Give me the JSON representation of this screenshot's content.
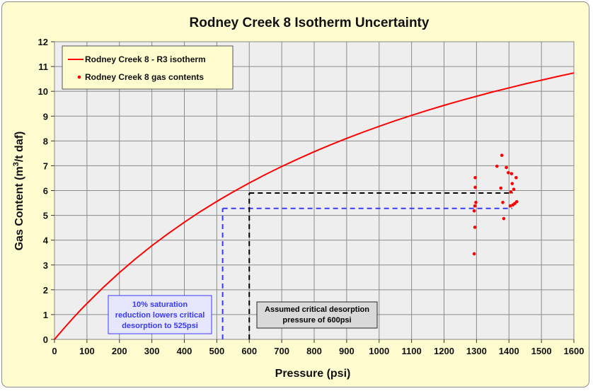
{
  "chart_data": {
    "type": "scatter",
    "title": "Rodney Creek 8 Isotherm Uncertainty",
    "xlabel": "Pressure (psi)",
    "ylabel": "Gas Content (m",
    "ylabel_sup": "3",
    "ylabel_end": "/t daf)",
    "xlim": [
      0,
      1600
    ],
    "ylim": [
      0,
      12
    ],
    "xticks": [
      "0",
      "100",
      "200",
      "300",
      "400",
      "500",
      "600",
      "700",
      "800",
      "900",
      "1000",
      "1100",
      "1200",
      "1300",
      "1400",
      "1500",
      "1600"
    ],
    "yticks": [
      "0",
      "1",
      "2",
      "3",
      "4",
      "5",
      "6",
      "7",
      "8",
      "9",
      "10",
      "11",
      "12"
    ],
    "grid": true,
    "legend_position": "top-left",
    "series": [
      {
        "name": "Rodney Creek 8 - R3 isotherm",
        "kind": "line",
        "color": "#ff0000",
        "x": [
          0,
          25,
          50,
          75,
          100,
          150,
          200,
          250,
          300,
          350,
          400,
          450,
          500,
          525,
          550,
          600,
          650,
          700,
          750,
          800,
          850,
          900,
          950,
          1000,
          1050,
          1100,
          1150,
          1200,
          1250,
          1300,
          1350,
          1400,
          1450,
          1500,
          1550,
          1600
        ],
        "y": [
          0,
          0.385,
          0.753,
          1.108,
          1.448,
          2.092,
          2.693,
          3.252,
          3.776,
          4.265,
          4.724,
          5.155,
          5.56,
          5.755,
          5.943,
          6.304,
          6.646,
          6.969,
          7.275,
          7.565,
          7.841,
          8.103,
          8.352,
          8.589,
          8.815,
          9.031,
          9.237,
          9.434,
          9.622,
          9.802,
          9.975,
          10.14,
          10.3,
          10.45,
          10.6,
          10.74
        ]
      },
      {
        "name": "Rodney Creek 8 gas contents",
        "kind": "scatter",
        "color": "#ff0000",
        "points": [
          [
            1293,
            3.45
          ],
          [
            1295,
            4.52
          ],
          [
            1293,
            5.18
          ],
          [
            1295,
            5.38
          ],
          [
            1298,
            5.52
          ],
          [
            1296,
            6.13
          ],
          [
            1296,
            6.52
          ],
          [
            1363,
            6.98
          ],
          [
            1375,
            6.1
          ],
          [
            1378,
            7.42
          ],
          [
            1381,
            5.52
          ],
          [
            1384,
            4.87
          ],
          [
            1392,
            6.93
          ],
          [
            1398,
            6.72
          ],
          [
            1404,
            5.38
          ],
          [
            1406,
            5.94
          ],
          [
            1408,
            6.68
          ],
          [
            1410,
            6.28
          ],
          [
            1412,
            5.42
          ],
          [
            1415,
            6.05
          ],
          [
            1418,
            5.48
          ],
          [
            1422,
            6.52
          ],
          [
            1424,
            5.55
          ]
        ]
      }
    ],
    "annotations": [
      {
        "text_lines": [
          "10% saturation",
          "reduction lowers critical",
          "desorption to 525psi"
        ],
        "color": "#3a3aff",
        "box_fill": "#e6e6ff",
        "guide_x": 518,
        "guide_y": 5.28,
        "guide_x_end": 1410
      },
      {
        "text_lines": [
          "Assumed critical desorption",
          "pressure of 600psi"
        ],
        "color": "#000000",
        "box_fill": "#d9d9d9",
        "guide_x": 600,
        "guide_y": 5.9,
        "guide_x_end": 1412
      }
    ],
    "colors": {
      "background": "#fffdd0",
      "plot_area": "#eeeeee",
      "isotherm": "#ff0000",
      "blue_guide": "#3a3aff",
      "black_guide": "#000000"
    }
  }
}
